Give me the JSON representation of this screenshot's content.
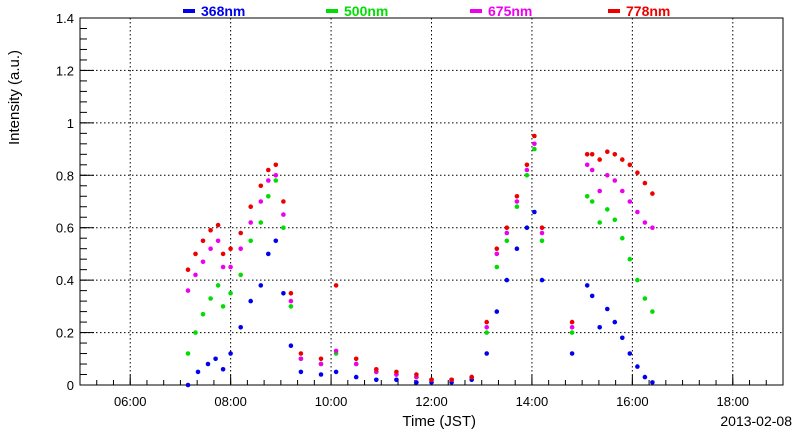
{
  "chart_data": {
    "type": "scatter",
    "xlabel": "Time (JST)",
    "ylabel": "Intensity (a.u.)",
    "date_label": "2013-02-08",
    "xlim": [
      5.0,
      19.0
    ],
    "ylim": [
      0,
      1.4
    ],
    "x_ticks": [
      6,
      8,
      10,
      12,
      14,
      16,
      18
    ],
    "x_tick_labels": [
      "06:00",
      "08:00",
      "10:00",
      "12:00",
      "14:00",
      "16:00",
      "18:00"
    ],
    "y_ticks": [
      0,
      0.2,
      0.4,
      0.6,
      0.8,
      1,
      1.2,
      1.4
    ],
    "y_tick_labels": [
      "0",
      "0.2",
      "0.4",
      "0.6",
      "0.8",
      "1",
      "1.2",
      "1.4"
    ],
    "grid": true,
    "legend_position": "top",
    "series": [
      {
        "name": "368nm",
        "color": "#0000ee",
        "x": [
          7.15,
          7.35,
          7.55,
          7.7,
          7.85,
          8.0,
          8.2,
          8.4,
          8.6,
          8.75,
          8.9,
          9.05,
          9.2,
          9.4,
          9.8,
          10.1,
          10.5,
          10.9,
          11.3,
          11.7,
          12.0,
          12.4,
          12.8,
          13.1,
          13.3,
          13.5,
          13.7,
          13.9,
          14.05,
          14.2,
          14.8,
          15.1,
          15.2,
          15.35,
          15.5,
          15.65,
          15.8,
          15.95,
          16.1,
          16.25,
          16.4
        ],
        "y": [
          0.0,
          0.05,
          0.08,
          0.1,
          0.06,
          0.12,
          0.22,
          0.32,
          0.38,
          0.5,
          0.55,
          0.35,
          0.15,
          0.05,
          0.04,
          0.05,
          0.03,
          0.02,
          0.02,
          0.01,
          0.01,
          0.01,
          0.02,
          0.12,
          0.28,
          0.4,
          0.52,
          0.6,
          0.66,
          0.4,
          0.12,
          0.38,
          0.34,
          0.22,
          0.29,
          0.24,
          0.18,
          0.12,
          0.07,
          0.03,
          0.01
        ]
      },
      {
        "name": "500nm",
        "color": "#00dd00",
        "x": [
          7.15,
          7.3,
          7.45,
          7.6,
          7.75,
          7.85,
          8.0,
          8.2,
          8.4,
          8.6,
          8.75,
          8.9,
          9.05,
          9.2,
          9.4,
          9.8,
          10.1,
          10.5,
          10.9,
          11.3,
          11.7,
          12.0,
          12.4,
          12.8,
          13.1,
          13.3,
          13.5,
          13.7,
          13.9,
          14.05,
          14.2,
          14.8,
          15.1,
          15.2,
          15.35,
          15.5,
          15.65,
          15.8,
          15.95,
          16.1,
          16.25,
          16.4
        ],
        "y": [
          0.12,
          0.2,
          0.27,
          0.33,
          0.38,
          0.3,
          0.35,
          0.42,
          0.55,
          0.62,
          0.72,
          0.78,
          0.6,
          0.3,
          0.1,
          0.08,
          0.12,
          0.08,
          0.05,
          0.04,
          0.03,
          0.02,
          0.02,
          0.03,
          0.2,
          0.45,
          0.55,
          0.68,
          0.8,
          0.9,
          0.55,
          0.2,
          0.72,
          0.7,
          0.62,
          0.67,
          0.63,
          0.56,
          0.48,
          0.4,
          0.33,
          0.28
        ]
      },
      {
        "name": "675nm",
        "color": "#ee00ee",
        "x": [
          7.15,
          7.3,
          7.45,
          7.6,
          7.75,
          7.85,
          8.0,
          8.2,
          8.4,
          8.6,
          8.75,
          8.9,
          9.05,
          9.2,
          9.4,
          9.8,
          10.1,
          10.5,
          10.9,
          11.3,
          11.7,
          12.0,
          12.4,
          12.8,
          13.1,
          13.3,
          13.5,
          13.7,
          13.9,
          14.05,
          14.2,
          14.8,
          15.1,
          15.2,
          15.35,
          15.5,
          15.65,
          15.8,
          15.95,
          16.1,
          16.25,
          16.4
        ],
        "y": [
          0.36,
          0.42,
          0.47,
          0.52,
          0.55,
          0.45,
          0.45,
          0.52,
          0.62,
          0.7,
          0.78,
          0.8,
          0.65,
          0.32,
          0.1,
          0.08,
          0.13,
          0.08,
          0.05,
          0.04,
          0.03,
          0.02,
          0.02,
          0.03,
          0.22,
          0.5,
          0.58,
          0.7,
          0.82,
          0.92,
          0.58,
          0.22,
          0.84,
          0.82,
          0.74,
          0.8,
          0.78,
          0.74,
          0.7,
          0.66,
          0.62,
          0.6
        ]
      },
      {
        "name": "778nm",
        "color": "#ee0000",
        "x": [
          7.15,
          7.3,
          7.45,
          7.6,
          7.75,
          7.85,
          8.0,
          8.2,
          8.4,
          8.6,
          8.75,
          8.9,
          9.05,
          9.2,
          9.4,
          9.8,
          10.1,
          10.5,
          10.9,
          11.3,
          11.7,
          12.0,
          12.4,
          12.8,
          13.1,
          13.3,
          13.5,
          13.7,
          13.9,
          14.05,
          14.2,
          14.8,
          15.1,
          15.2,
          15.35,
          15.5,
          15.65,
          15.8,
          15.95,
          16.1,
          16.25,
          16.4
        ],
        "y": [
          0.44,
          0.5,
          0.55,
          0.59,
          0.61,
          0.5,
          0.52,
          0.58,
          0.68,
          0.76,
          0.82,
          0.84,
          0.7,
          0.35,
          0.12,
          0.1,
          0.38,
          0.1,
          0.06,
          0.05,
          0.04,
          0.02,
          0.02,
          0.03,
          0.24,
          0.52,
          0.6,
          0.72,
          0.84,
          0.95,
          0.6,
          0.24,
          0.88,
          0.88,
          0.86,
          0.89,
          0.88,
          0.86,
          0.84,
          0.81,
          0.77,
          0.73
        ]
      }
    ]
  }
}
